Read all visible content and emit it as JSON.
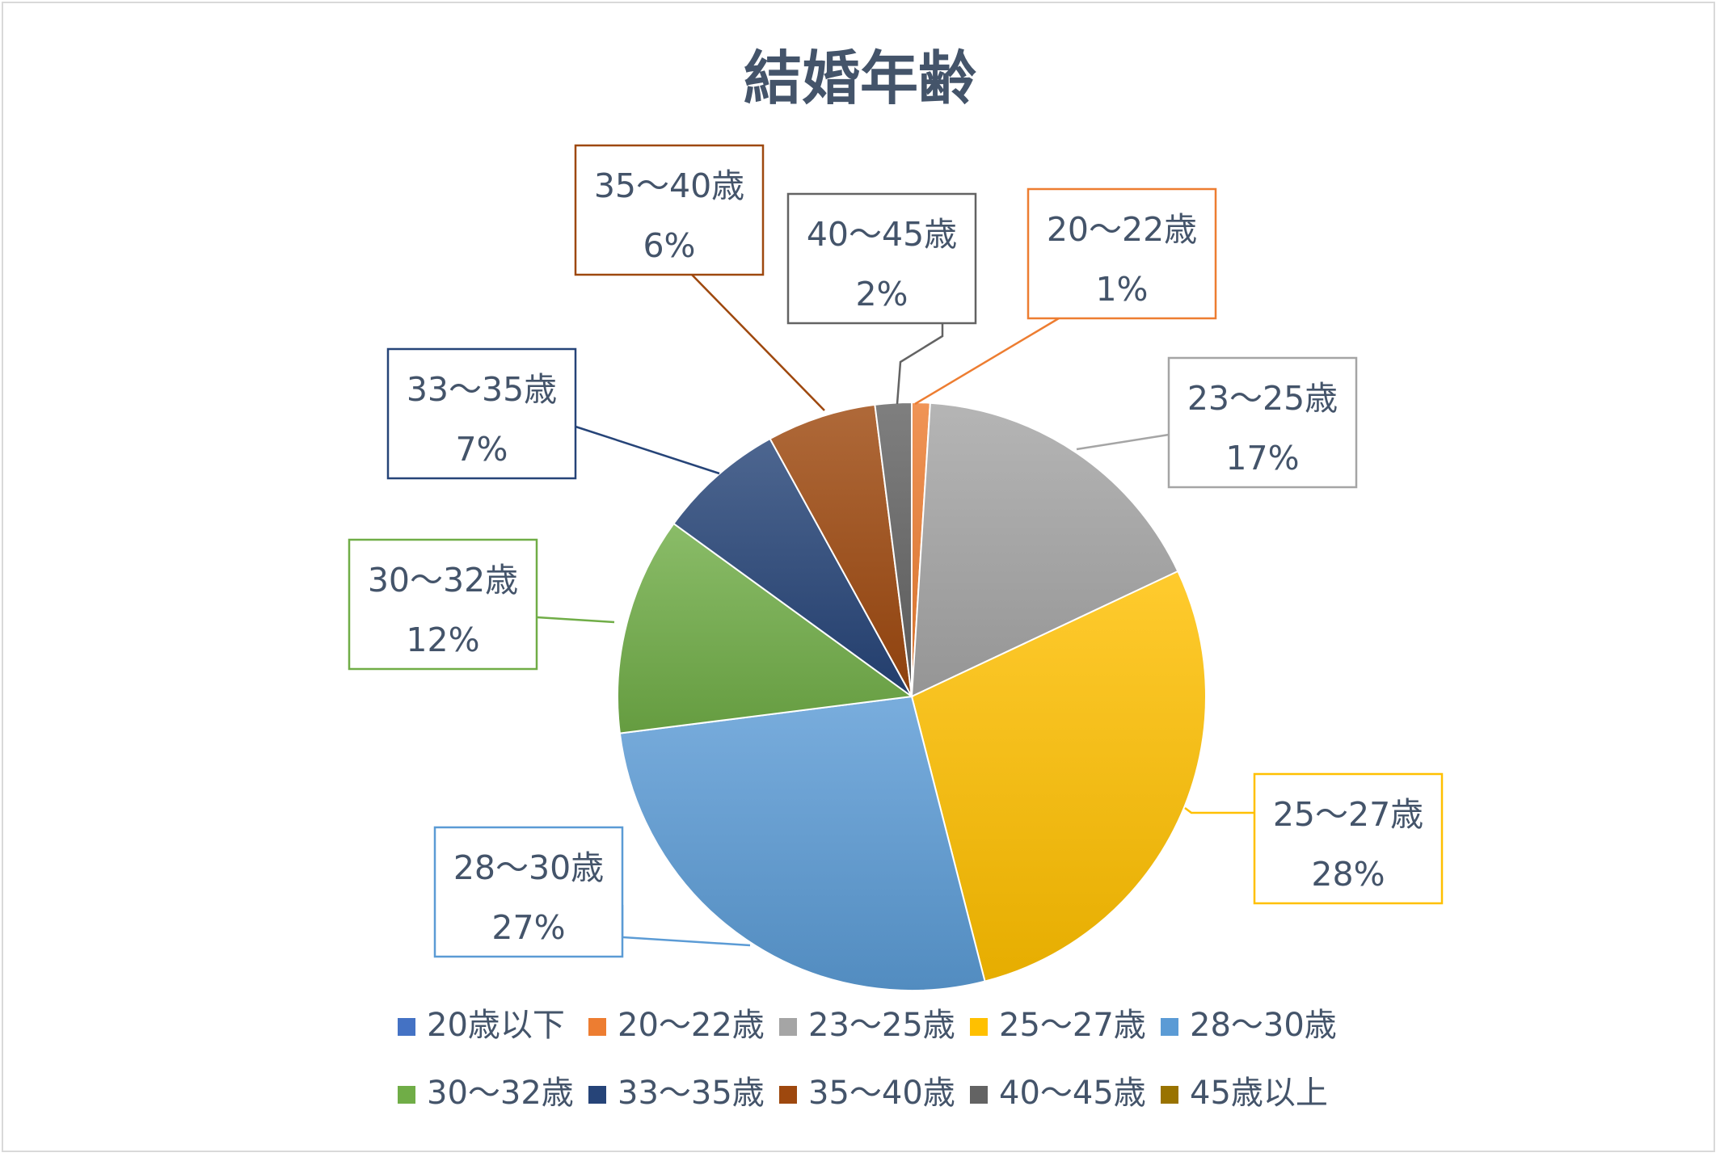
{
  "chart_data": {
    "type": "pie",
    "title": "結婚年齢",
    "legend_position": "bottom",
    "categories": [
      "20歳以下",
      "20〜22歳",
      "23〜25歳",
      "25〜27歳",
      "28〜30歳",
      "30〜32歳",
      "33〜35歳",
      "35〜40歳",
      "40〜45歳",
      "45歳以上"
    ],
    "values": [
      0,
      1,
      17,
      28,
      27,
      12,
      7,
      6,
      2,
      0
    ],
    "data_labels": [
      "",
      "1%",
      "17%",
      "28%",
      "27%",
      "12%",
      "7%",
      "6%",
      "2%",
      ""
    ],
    "colors": [
      "#4472C4",
      "#ED7D31",
      "#A5A5A5",
      "#FFC000",
      "#5B9BD5",
      "#70AD47",
      "#264478",
      "#9E480E",
      "#636363",
      "#997300"
    ]
  }
}
